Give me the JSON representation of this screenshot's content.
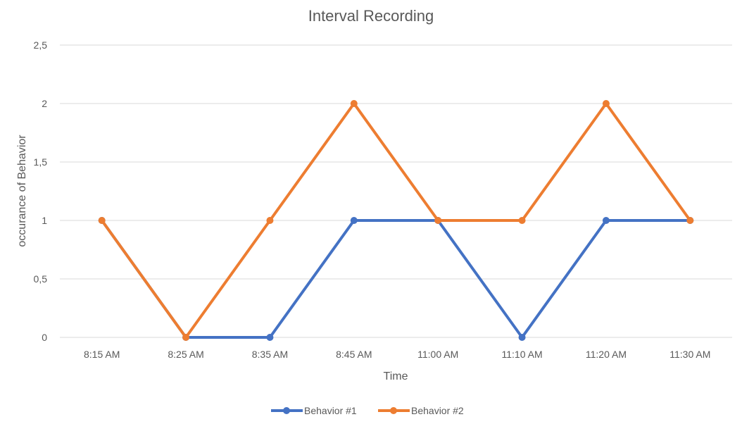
{
  "chart_data": {
    "type": "line",
    "title": "Interval Recording",
    "xlabel": "Time",
    "ylabel": "occurance of Behavior",
    "categories": [
      "8:15 AM",
      "8:25 AM",
      "8:35 AM",
      "8:45 AM",
      "11:00 AM",
      "11:10 AM",
      "11:20 AM",
      "11:30 AM"
    ],
    "ylim": [
      0,
      2.5
    ],
    "yticks": [
      "0",
      "0,5",
      "1",
      "1,5",
      "2",
      "2,5"
    ],
    "grid": true,
    "legend_position": "bottom",
    "series": [
      {
        "name": "Behavior #1",
        "color": "#4472C4",
        "values": [
          1,
          0,
          0,
          1,
          1,
          0,
          1,
          1
        ]
      },
      {
        "name": "Behavior #2",
        "color": "#ED7D31",
        "values": [
          1,
          0,
          1,
          2,
          1,
          1,
          2,
          1
        ]
      }
    ]
  }
}
